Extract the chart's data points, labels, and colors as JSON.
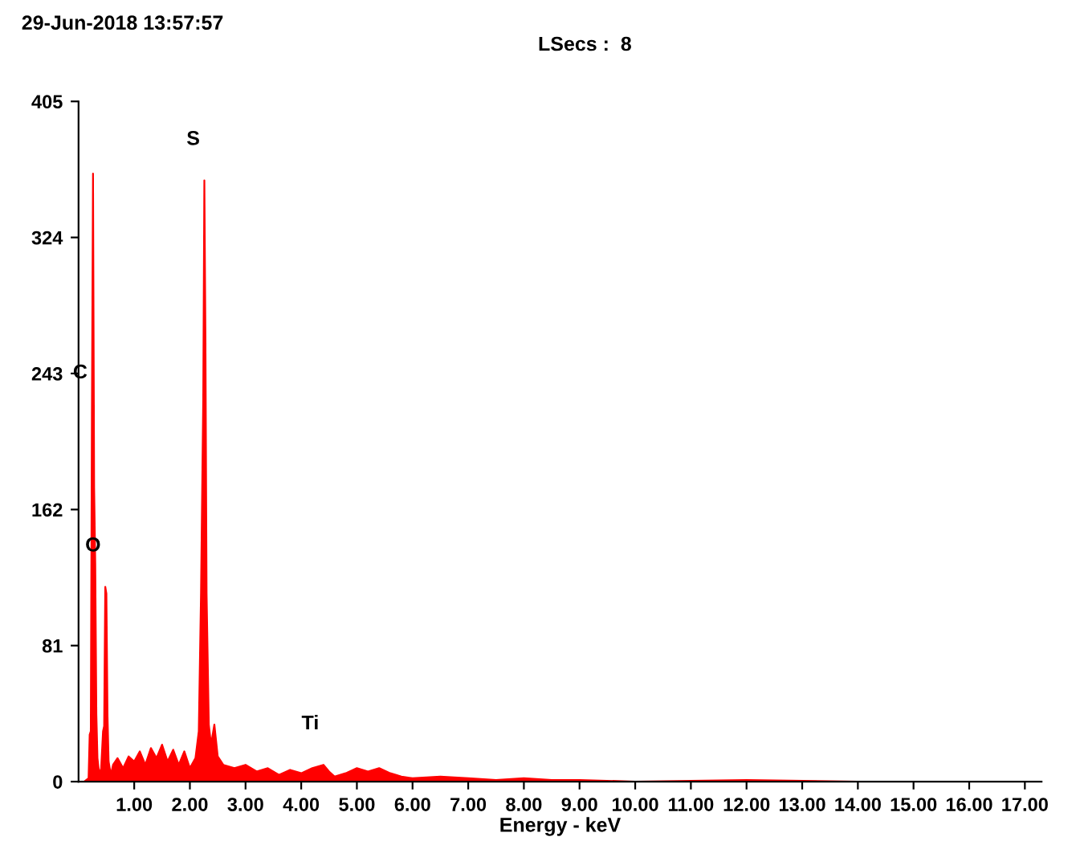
{
  "chart_data": {
    "type": "area",
    "title": "29-Jun-2018 13:57:57",
    "subtitle": "LSecs :  8",
    "xlabel": "Energy - keV",
    "x": [
      0.1,
      0.18,
      0.2,
      0.22,
      0.24,
      0.26,
      0.28,
      0.3,
      0.32,
      0.34,
      0.36,
      0.4,
      0.44,
      0.46,
      0.48,
      0.5,
      0.52,
      0.54,
      0.58,
      0.62,
      0.7,
      0.8,
      0.9,
      1.0,
      1.1,
      1.2,
      1.3,
      1.4,
      1.5,
      1.6,
      1.7,
      1.8,
      1.9,
      2.0,
      2.1,
      2.16,
      2.2,
      2.24,
      2.26,
      2.28,
      2.3,
      2.34,
      2.38,
      2.44,
      2.5,
      2.6,
      2.8,
      3.0,
      3.2,
      3.4,
      3.6,
      3.8,
      4.0,
      4.2,
      4.4,
      4.5,
      4.6,
      4.8,
      5.0,
      5.2,
      5.4,
      5.6,
      5.8,
      6.0,
      6.5,
      7.0,
      7.5,
      8.0,
      8.5,
      9.0,
      10.0,
      12.0,
      14.0,
      17.0
    ],
    "series": [
      {
        "color": "#ff0000",
        "values": [
          0,
          2,
          28,
          30,
          219,
          362,
          175,
          130,
          40,
          14,
          8,
          4,
          30,
          33,
          116,
          112,
          40,
          12,
          4,
          10,
          14,
          8,
          15,
          12,
          18,
          10,
          20,
          14,
          22,
          12,
          19,
          10,
          18,
          8,
          14,
          30,
          112,
          228,
          358,
          260,
          112,
          34,
          22,
          34,
          15,
          10,
          8,
          10,
          6,
          8,
          4,
          7,
          5,
          8,
          10,
          6,
          3,
          5,
          8,
          6,
          8,
          5,
          3,
          2,
          3,
          2,
          1,
          2,
          1,
          1,
          0,
          1,
          0,
          0
        ]
      }
    ],
    "xlim": [
      0,
      17.3
    ],
    "ylim": [
      0,
      405
    ],
    "xticks": [
      {
        "value": 1,
        "label": "1.00"
      },
      {
        "value": 2,
        "label": "2.00"
      },
      {
        "value": 3,
        "label": "3.00"
      },
      {
        "value": 4,
        "label": "4.00"
      },
      {
        "value": 5,
        "label": "5.00"
      },
      {
        "value": 6,
        "label": "6.00"
      },
      {
        "value": 7,
        "label": "7.00"
      },
      {
        "value": 8,
        "label": "8.00"
      },
      {
        "value": 9,
        "label": "9.00"
      },
      {
        "value": 10,
        "label": "10.00"
      },
      {
        "value": 11,
        "label": "11.00"
      },
      {
        "value": 12,
        "label": "12.00"
      },
      {
        "value": 13,
        "label": "13.00"
      },
      {
        "value": 14,
        "label": "14.00"
      },
      {
        "value": 15,
        "label": "15.00"
      },
      {
        "value": 16,
        "label": "16.00"
      },
      {
        "value": 17,
        "label": "17.00"
      }
    ],
    "yticks": [
      0,
      81,
      162,
      243,
      324,
      405
    ],
    "annotations": [
      {
        "text": "C",
        "x": 0.24,
        "y": 219
      },
      {
        "text": "O",
        "x": 0.48,
        "y": 116
      },
      {
        "text": "S",
        "x": 2.26,
        "y": 358
      },
      {
        "text": "Ti",
        "x": 4.4,
        "y": 10
      }
    ],
    "grid": false,
    "legend": false
  }
}
